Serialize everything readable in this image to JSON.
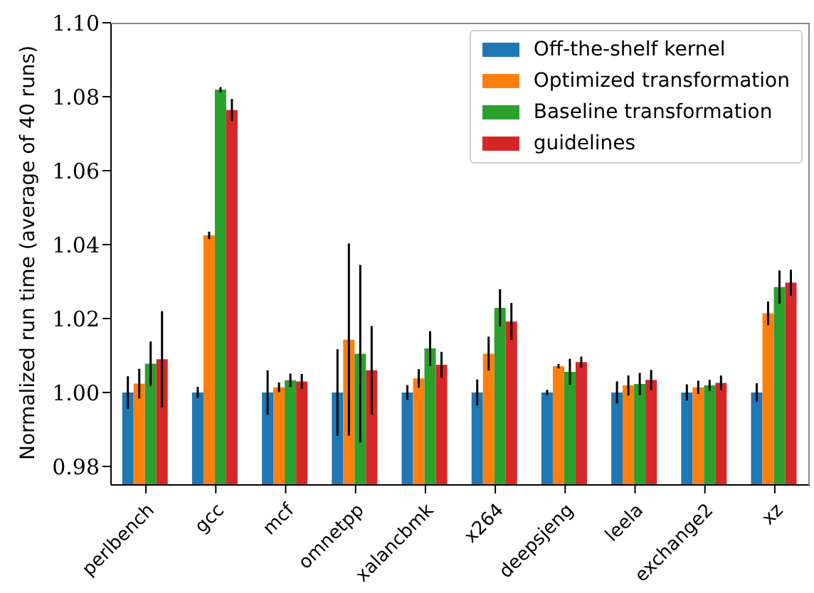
{
  "chart_data": {
    "type": "bar",
    "ylabel": "Normalized run time (average of 40 runs)",
    "categories": [
      "perlbench",
      "gcc",
      "mcf",
      "omnetpp",
      "xalancbmk",
      "x264",
      "deepsjeng",
      "leela",
      "exchange2",
      "xz"
    ],
    "series": [
      {
        "name": "Off-the-shelf kernel",
        "color": "#1f77b4",
        "values": [
          1.0,
          1.0,
          1.0,
          1.0,
          1.0,
          1.0,
          1.0,
          1.0,
          1.0,
          1.0
        ],
        "errors": [
          0.0044,
          0.0015,
          0.006,
          0.0117,
          0.002,
          0.0035,
          0.0007,
          0.003,
          0.0022,
          0.0025
        ]
      },
      {
        "name": "Optimized transformation",
        "color": "#ff7f0e",
        "values": [
          1.0024,
          1.0425,
          1.0014,
          1.0143,
          1.0038,
          1.0105,
          1.0071,
          1.0019,
          1.0014,
          1.0214
        ],
        "errors": [
          0.004,
          0.001,
          0.0013,
          0.026,
          0.0025,
          0.0046,
          0.0006,
          0.0027,
          0.0018,
          0.0032
        ]
      },
      {
        "name": "Baseline transformation",
        "color": "#2ca02c",
        "values": [
          1.0078,
          1.0819,
          1.0033,
          1.0105,
          1.0119,
          1.0229,
          1.0056,
          1.0023,
          1.0019,
          1.0285
        ],
        "errors": [
          0.006,
          0.0007,
          0.0018,
          0.024,
          0.0047,
          0.005,
          0.0035,
          0.003,
          0.0015,
          0.0045
        ]
      },
      {
        "name": "guidelines",
        "color": "#d62728",
        "values": [
          1.009,
          1.0764,
          1.003,
          1.006,
          1.0075,
          1.0192,
          1.0082,
          1.0034,
          1.0026,
          1.0297
        ],
        "errors": [
          0.013,
          0.003,
          0.002,
          0.012,
          0.0035,
          0.005,
          0.0015,
          0.0027,
          0.002,
          0.0035
        ]
      }
    ],
    "ylim": [
      0.975,
      1.1
    ],
    "yticks": [
      {
        "value": 0.98,
        "label": "0.98"
      },
      {
        "value": 1.0,
        "label": "1.00"
      },
      {
        "value": 1.02,
        "label": "1.02"
      },
      {
        "value": 1.04,
        "label": "1.04"
      },
      {
        "value": 1.06,
        "label": "1.06"
      },
      {
        "value": 1.08,
        "label": "1.08"
      },
      {
        "value": 1.1,
        "label": "1.10"
      }
    ],
    "legend": "top right",
    "grid": false
  }
}
